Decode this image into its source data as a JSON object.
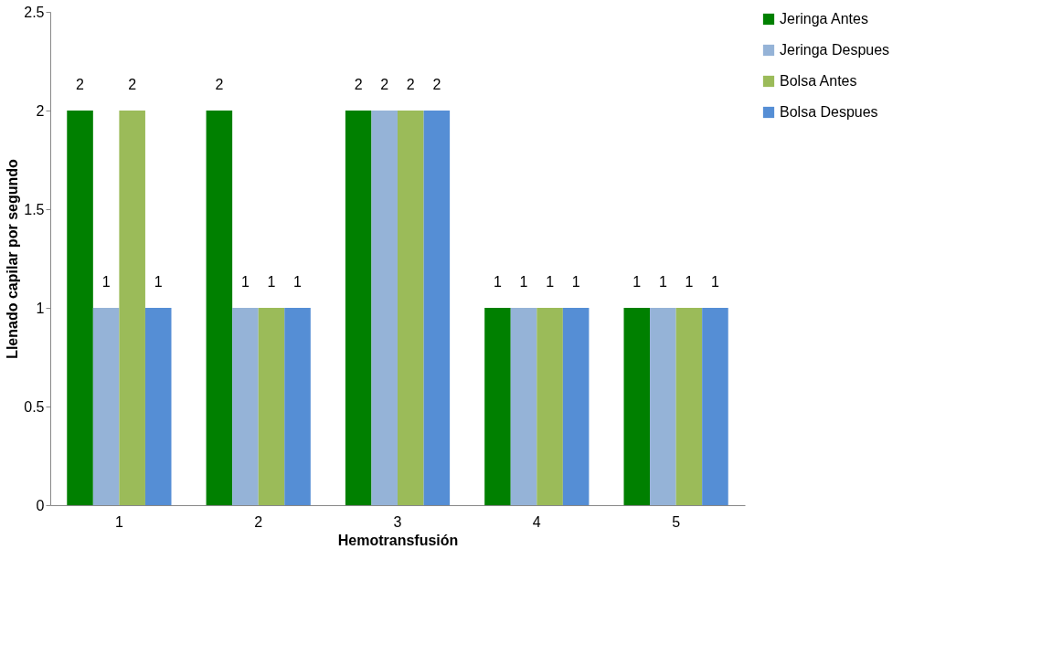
{
  "chart_data": {
    "type": "bar",
    "xlabel": "Hemotransfusión",
    "ylabel": "Llenado capilar por segundo",
    "categories": [
      "1",
      "2",
      "3",
      "4",
      "5"
    ],
    "series": [
      {
        "name": "Jeringa Antes",
        "color": "#008000",
        "values": [
          2,
          2,
          2,
          1,
          1
        ]
      },
      {
        "name": "Jeringa Despues",
        "color": "#95b3d7",
        "values": [
          1,
          1,
          2,
          1,
          1
        ]
      },
      {
        "name": "Bolsa Antes",
        "color": "#9bbb59",
        "values": [
          2,
          1,
          2,
          1,
          1
        ]
      },
      {
        "name": "Bolsa Despues",
        "color": "#558ed5",
        "values": [
          1,
          1,
          2,
          1,
          1
        ]
      }
    ],
    "ylim": [
      0,
      2.5
    ],
    "yticks": [
      0,
      0.5,
      1,
      1.5,
      2,
      2.5
    ],
    "grid": false,
    "legend": "right",
    "data_labels": true
  }
}
